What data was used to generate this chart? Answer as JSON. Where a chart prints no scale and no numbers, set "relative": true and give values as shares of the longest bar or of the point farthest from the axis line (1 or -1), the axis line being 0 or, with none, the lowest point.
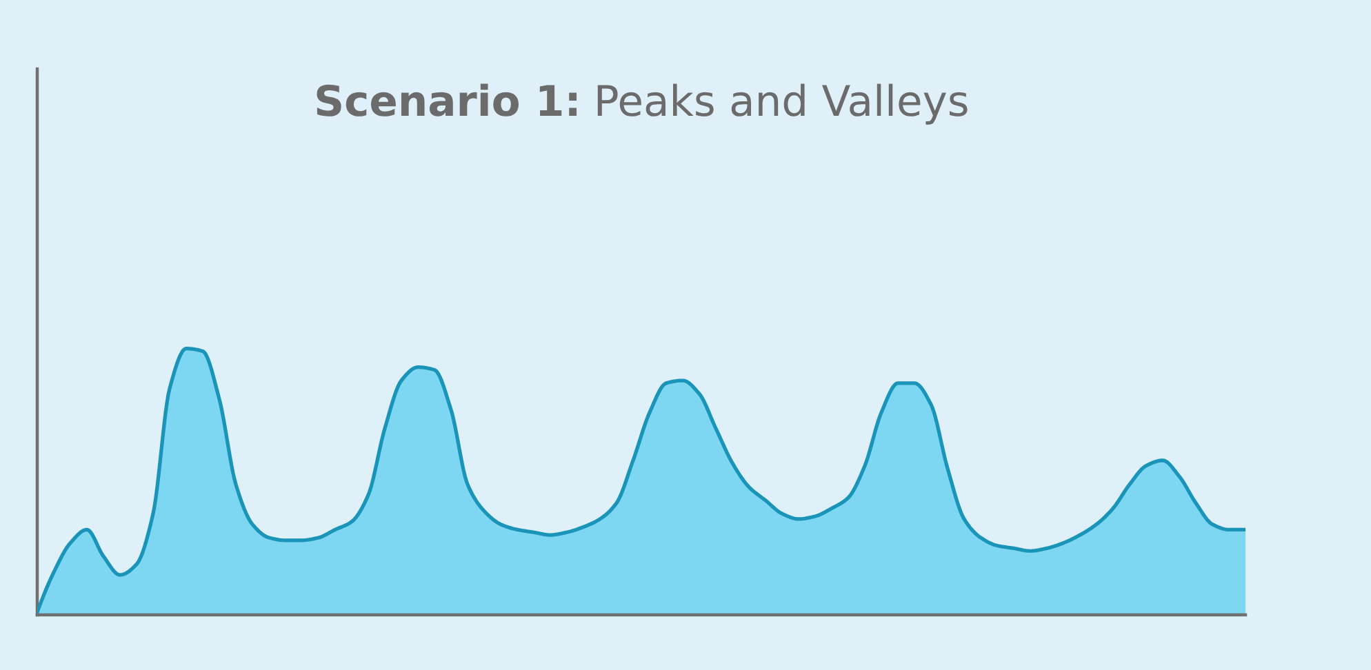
{
  "chart_data": {
    "type": "area",
    "title": "Scenario 1: Peaks and Valleys",
    "relative": true,
    "categories": [
      null,
      null,
      null,
      null,
      null,
      null,
      null,
      null,
      null,
      null,
      null,
      null,
      null,
      null,
      null,
      null,
      null,
      null,
      null,
      null,
      null,
      null,
      null,
      null,
      null,
      null,
      null,
      null,
      null,
      null,
      null,
      null,
      null,
      null,
      null,
      null,
      null,
      null,
      null,
      null,
      null,
      null,
      null,
      null,
      null,
      null,
      null,
      null,
      null,
      null,
      null,
      null,
      null,
      null,
      null,
      null,
      null,
      null,
      null,
      null,
      null,
      null,
      null,
      null,
      null,
      null,
      null,
      null,
      null,
      null,
      null,
      null,
      null,
      null
    ],
    "series": [
      {
        "color": "#1a94b8",
        "values": [
          0.01,
          0.16,
          0.27,
          0.32,
          0.22,
          0.15,
          0.19,
          0.38,
          0.85,
          1,
          0.99,
          0.81,
          0.49,
          0.34,
          0.29,
          0.28,
          0.28,
          0.29,
          0.32,
          0.35,
          0.45,
          0.7,
          0.88,
          0.93,
          0.92,
          0.77,
          0.49,
          0.39,
          0.34,
          0.32,
          0.31,
          0.3,
          0.31,
          0.33,
          0.36,
          0.42,
          0.58,
          0.76,
          0.87,
          0.88,
          0.83,
          0.7,
          0.57,
          0.48,
          0.43,
          0.38,
          0.36,
          0.37,
          0.4,
          0.44,
          0.56,
          0.76,
          0.87,
          0.87,
          0.79,
          0.55,
          0.36,
          0.29,
          0.26,
          0.25,
          0.24,
          0.25,
          0.27,
          0.3,
          0.34,
          0.4,
          0.49,
          0.56,
          0.58,
          0.52,
          0.42,
          0.34,
          0.32,
          0.32
        ]
      }
    ]
  }
}
